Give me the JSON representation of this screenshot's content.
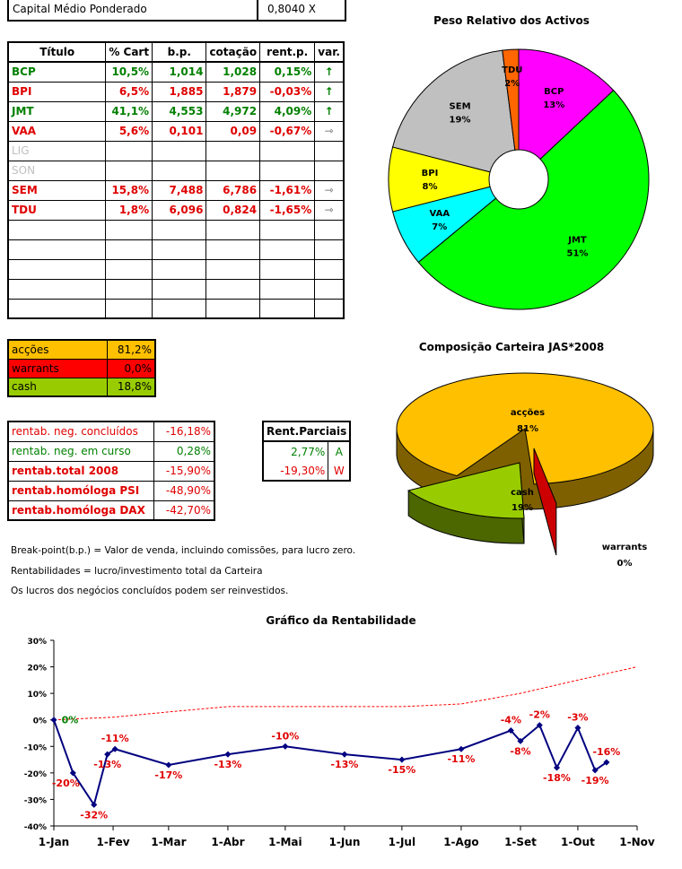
{
  "capital": {
    "label": "Capital Médio Ponderado",
    "value": "0,8040 X"
  },
  "assets_table": {
    "headers": [
      "Título",
      "% Cart",
      "b.p.",
      "cotação",
      "rent.p.",
      "var."
    ],
    "rows": [
      {
        "title": "BCP",
        "pct": "10,5%",
        "bp": "1,014",
        "cot": "1,028",
        "rent": "0,15%",
        "var": "up",
        "cls": "green"
      },
      {
        "title": "BPI",
        "pct": "6,5%",
        "bp": "1,885",
        "cot": "1,879",
        "rent": "-0,03%",
        "var": "up",
        "cls": "red"
      },
      {
        "title": "JMT",
        "pct": "41,1%",
        "bp": "4,553",
        "cot": "4,972",
        "rent": "4,09%",
        "var": "up",
        "cls": "green"
      },
      {
        "title": "VAA",
        "pct": "5,6%",
        "bp": "0,101",
        "cot": "0,09",
        "rent": "-0,67%",
        "var": "right",
        "cls": "red"
      },
      {
        "title": "LIG",
        "pct": "",
        "bp": "",
        "cot": "",
        "rent": "",
        "var": "",
        "cls": "grey"
      },
      {
        "title": "SON",
        "pct": "",
        "bp": "",
        "cot": "",
        "rent": "",
        "var": "",
        "cls": "grey"
      },
      {
        "title": "SEM",
        "pct": "15,8%",
        "bp": "7,488",
        "cot": "6,786",
        "rent": "-1,61%",
        "var": "right",
        "cls": "red"
      },
      {
        "title": "TDU",
        "pct": "1,8%",
        "bp": "6,096",
        "cot": "0,824",
        "rent": "-1,65%",
        "var": "right",
        "cls": "red"
      },
      {
        "title": "",
        "pct": "",
        "bp": "",
        "cot": "",
        "rent": "",
        "var": "",
        "cls": ""
      },
      {
        "title": "",
        "pct": "",
        "bp": "",
        "cot": "",
        "rent": "",
        "var": "",
        "cls": ""
      },
      {
        "title": "",
        "pct": "",
        "bp": "",
        "cot": "",
        "rent": "",
        "var": "",
        "cls": ""
      },
      {
        "title": "",
        "pct": "",
        "bp": "",
        "cot": "",
        "rent": "",
        "var": "",
        "cls": ""
      },
      {
        "title": "",
        "pct": "",
        "bp": "",
        "cot": "",
        "rent": "",
        "var": "",
        "cls": ""
      }
    ]
  },
  "composition": [
    {
      "label": "acções",
      "value": "81,2%",
      "bg": "#ffc000",
      "fg": "#000000"
    },
    {
      "label": "warrants",
      "value": "0,0%",
      "bg": "#ff0000",
      "fg": "#000000"
    },
    {
      "label": "cash",
      "value": "18,8%",
      "bg": "#99cc00",
      "fg": "#000000"
    }
  ],
  "rentab": [
    {
      "label": "rentab. neg. concluídos",
      "value": "-16,18%",
      "bold": false,
      "lc": "#e00000",
      "vc": "#e00000"
    },
    {
      "label": "rentab. neg. em curso",
      "value": "0,28%",
      "bold": false,
      "lc": "#008000",
      "vc": "#008000"
    },
    {
      "label": "rentab.total 2008",
      "value": "-15,90%",
      "bold": true,
      "lc": "#e00000",
      "vc": "#e00000"
    },
    {
      "label": "rentab.homóloga PSI",
      "value": "-48,90%",
      "bold": true,
      "lc": "#e00000",
      "vc": "#e00000"
    },
    {
      "label": "rentab.homóloga DAX",
      "value": "-42,70%",
      "bold": true,
      "lc": "#e00000",
      "vc": "#e00000"
    }
  ],
  "parciais": {
    "header": "Rent.Parciais",
    "rows": [
      {
        "value": "2,77%",
        "tag": "A",
        "color": "#008000"
      },
      {
        "value": "-19,30%",
        "tag": "W",
        "color": "#e00000"
      }
    ]
  },
  "notes": [
    "Break-point(b.p.) = Valor de venda, incluindo comissões, para lucro zero.",
    "Rentabilidades = lucro/investimento total da Carteira",
    "Os lucros dos negócios concluídos podem ser reinvestidos."
  ],
  "chart_data": [
    {
      "type": "pie",
      "title": "Peso Relativo dos Activos",
      "variant": "doughnut",
      "slices": [
        {
          "label": "BCP",
          "value": 13,
          "text": "13%",
          "color": "#ff00ff"
        },
        {
          "label": "JMT",
          "value": 51,
          "text": "51%",
          "color": "#00ff00"
        },
        {
          "label": "VAA",
          "value": 7,
          "text": "7%",
          "color": "#00ffff"
        },
        {
          "label": "BPI",
          "value": 8,
          "text": "8%",
          "color": "#ffff00"
        },
        {
          "label": "SEM",
          "value": 19,
          "text": "19%",
          "color": "#c0c0c0"
        },
        {
          "label": "TDU",
          "value": 2,
          "text": "2%",
          "color": "#ff6600"
        }
      ]
    },
    {
      "type": "pie",
      "title": "Composição Carteira JAS*2008",
      "variant": "3d",
      "slices": [
        {
          "label": "acções",
          "value": 81,
          "text": "81%",
          "color": "#ffc000"
        },
        {
          "label": "cash",
          "value": 19,
          "text": "19%",
          "color": "#99cc00"
        },
        {
          "label": "warrants",
          "value": 0,
          "text": "0%",
          "color": "#cc0000"
        }
      ]
    },
    {
      "type": "line",
      "title": "Gráfico da Rentabilidade",
      "x_ticks": [
        "1-Jan",
        "1-Fev",
        "1-Mar",
        "1-Abr",
        "1-Mai",
        "1-Jun",
        "1-Jul",
        "1-Ago",
        "1-Set",
        "1-Out",
        "1-Nov"
      ],
      "y_ticks": [
        "30%",
        "20%",
        "10%",
        "0%",
        "-10%",
        "-20%",
        "-30%",
        "-40%"
      ],
      "ylim": [
        -40,
        30
      ],
      "series": [
        {
          "values": [
            {
              "x": "2008-01-01",
              "y": 0,
              "label": "0%"
            },
            {
              "x": "2008-01-11",
              "y": -20,
              "label": "-20%"
            },
            {
              "x": "2008-01-22",
              "y": -32,
              "label": "-32%"
            },
            {
              "x": "2008-01-29",
              "y": -13,
              "label": "-13%"
            },
            {
              "x": "2008-02-02",
              "y": -11,
              "label": "-11%"
            },
            {
              "x": "2008-03-01",
              "y": -17,
              "label": "-17%"
            },
            {
              "x": "2008-04-01",
              "y": -13,
              "label": "-13%"
            },
            {
              "x": "2008-05-01",
              "y": -10,
              "label": "-10%"
            },
            {
              "x": "2008-06-01",
              "y": -13,
              "label": "-13%"
            },
            {
              "x": "2008-07-01",
              "y": -15,
              "label": "-15%"
            },
            {
              "x": "2008-08-01",
              "y": -11,
              "label": "-11%"
            },
            {
              "x": "2008-08-27",
              "y": -4,
              "label": "-4%"
            },
            {
              "x": "2008-09-01",
              "y": -8,
              "label": "-8%"
            },
            {
              "x": "2008-09-11",
              "y": -2,
              "label": "-2%"
            },
            {
              "x": "2008-09-20",
              "y": -18,
              "label": "-18%"
            },
            {
              "x": "2008-10-01",
              "y": -3,
              "label": "-3%"
            },
            {
              "x": "2008-10-10",
              "y": -19,
              "label": "-19%"
            },
            {
              "x": "2008-10-16",
              "y": -16,
              "label": "-16%"
            }
          ],
          "color": "#000080"
        },
        {
          "values": [
            {
              "x": "2008-01-01",
              "y": 0
            },
            {
              "x": "2008-02-01",
              "y": 1
            },
            {
              "x": "2008-03-01",
              "y": 3
            },
            {
              "x": "2008-04-01",
              "y": 5
            },
            {
              "x": "2008-05-01",
              "y": 5
            },
            {
              "x": "2008-06-01",
              "y": 5
            },
            {
              "x": "2008-07-01",
              "y": 5
            },
            {
              "x": "2008-08-01",
              "y": 6
            },
            {
              "x": "2008-09-01",
              "y": 10
            },
            {
              "x": "2008-10-01",
              "y": 15
            },
            {
              "x": "2008-11-01",
              "y": 20
            }
          ],
          "color": "#ff0000",
          "style": "dashed"
        }
      ]
    }
  ]
}
